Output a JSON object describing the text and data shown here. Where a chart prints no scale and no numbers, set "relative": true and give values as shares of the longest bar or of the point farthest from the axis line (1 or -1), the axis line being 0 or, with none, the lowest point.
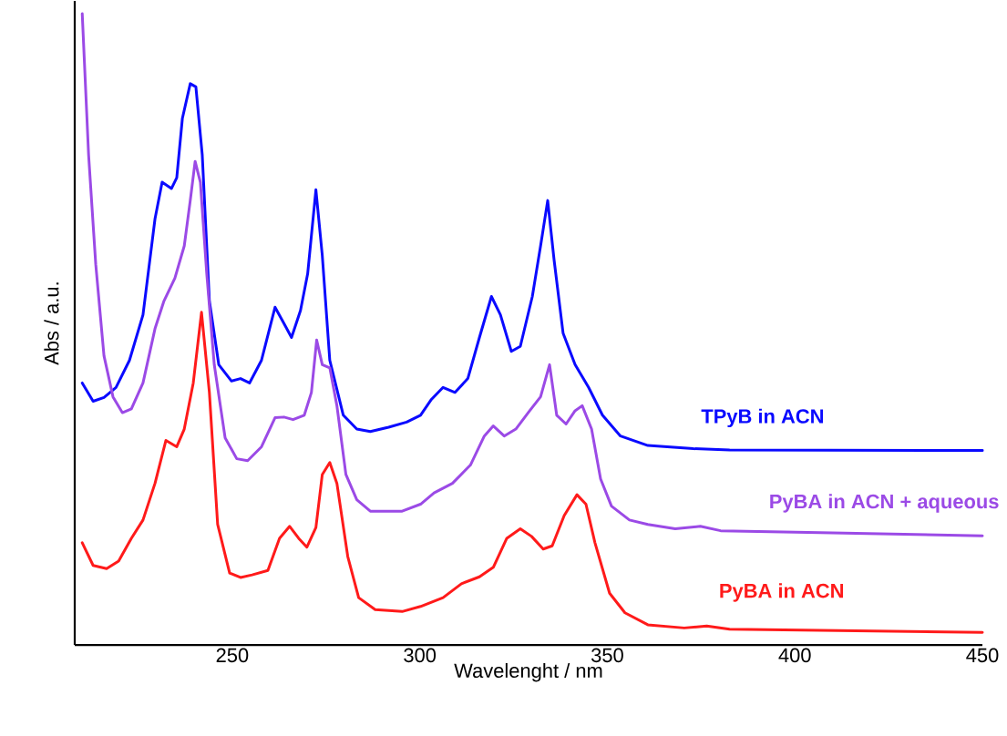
{
  "chart_data": {
    "type": "line",
    "relative": true,
    "xlabel": "Wavelenght / nm",
    "ylabel": "Abs / a.u.",
    "xlim": [
      208,
      450
    ],
    "xticks": [
      250,
      300,
      350,
      400,
      450
    ],
    "grid": false,
    "marker": "none",
    "line_style": "solid",
    "series": [
      {
        "name": "**TPyB in ACN**",
        "color": "#0a0aff",
        "x": [
          210,
          212.9,
          215.8,
          219,
          222.6,
          226.2,
          229.4,
          231.3,
          233.8,
          235.2,
          236.7,
          238.8,
          240.3,
          242,
          243.9,
          246.4,
          249.8,
          252.2,
          254.6,
          257.8,
          261.4,
          263.8,
          265.8,
          268.2,
          270.1,
          272.3,
          274,
          276,
          279.6,
          283.2,
          286.8,
          291.7,
          296.5,
          300.2,
          303.1,
          306.2,
          309.4,
          312.8,
          315.9,
          319.1,
          321.5,
          324.4,
          326.8,
          330,
          332.2,
          334.1,
          335.8,
          338.2,
          341.4,
          345,
          348.7,
          353.5,
          360.8,
          372.9,
          382.6,
          450
        ],
        "values": [
          0.415,
          0.386,
          0.392,
          0.408,
          0.451,
          0.523,
          0.675,
          0.733,
          0.723,
          0.74,
          0.834,
          0.889,
          0.884,
          0.776,
          0.545,
          0.444,
          0.418,
          0.422,
          0.415,
          0.451,
          0.535,
          0.509,
          0.487,
          0.53,
          0.588,
          0.721,
          0.617,
          0.451,
          0.364,
          0.342,
          0.338,
          0.345,
          0.353,
          0.364,
          0.389,
          0.408,
          0.4,
          0.422,
          0.487,
          0.552,
          0.523,
          0.465,
          0.473,
          0.552,
          0.632,
          0.704,
          0.61,
          0.494,
          0.444,
          0.408,
          0.364,
          0.331,
          0.316,
          0.311,
          0.309,
          0.308
        ]
      },
      {
        "name": "**PyBA  in  ACN  +  aqueous**",
        "color": "#9b4ae6",
        "x": [
          210,
          211.7,
          213.6,
          215.8,
          218.2,
          220.7,
          223.1,
          226.2,
          229.4,
          231.8,
          234.7,
          237.2,
          238.8,
          240.1,
          241.5,
          243.2,
          245.2,
          248.1,
          251.2,
          254.1,
          257.8,
          261.4,
          263.8,
          266.2,
          269.2,
          271.1,
          272.5,
          274,
          276,
          277.9,
          280.3,
          283.2,
          286.8,
          295.3,
          300.2,
          303.8,
          308.7,
          313.5,
          317.2,
          319.6,
          322.5,
          325.6,
          329.3,
          332.2,
          334.6,
          336.5,
          339,
          341.4,
          343.3,
          345.8,
          348.2,
          351.1,
          355.9,
          360.8,
          368.1,
          374.8,
          380.2,
          406.8,
          450
        ],
        "values": [
          1.0,
          0.776,
          0.603,
          0.458,
          0.393,
          0.368,
          0.374,
          0.415,
          0.501,
          0.545,
          0.581,
          0.632,
          0.704,
          0.766,
          0.733,
          0.588,
          0.444,
          0.328,
          0.295,
          0.292,
          0.314,
          0.36,
          0.361,
          0.357,
          0.364,
          0.4,
          0.483,
          0.444,
          0.439,
          0.379,
          0.27,
          0.23,
          0.212,
          0.212,
          0.223,
          0.241,
          0.256,
          0.285,
          0.331,
          0.347,
          0.331,
          0.342,
          0.371,
          0.393,
          0.444,
          0.364,
          0.35,
          0.371,
          0.379,
          0.342,
          0.263,
          0.22,
          0.198,
          0.191,
          0.184,
          0.188,
          0.181,
          0.178,
          0.173
        ]
      },
      {
        "name": "**PyBA in ACN**",
        "color": "#ff1a1a",
        "x": [
          210,
          212.9,
          216.5,
          219.7,
          223.1,
          226.2,
          229.4,
          232.3,
          235.2,
          237.2,
          239.6,
          241.8,
          243.9,
          246.1,
          249.3,
          252.2,
          255.3,
          259.5,
          262.6,
          265.3,
          267.7,
          269.9,
          272.3,
          274,
          276,
          277.9,
          280.8,
          283.7,
          288.1,
          295.3,
          300.2,
          306.2,
          311.1,
          315.9,
          319.6,
          323.2,
          326.8,
          329.8,
          332.9,
          335.3,
          338.5,
          341.9,
          344.3,
          346.7,
          350.6,
          354.7,
          360.8,
          370.5,
          376.5,
          382.6,
          450
        ],
        "values": [
          0.162,
          0.126,
          0.121,
          0.133,
          0.169,
          0.198,
          0.256,
          0.324,
          0.314,
          0.342,
          0.415,
          0.527,
          0.4,
          0.191,
          0.114,
          0.107,
          0.111,
          0.118,
          0.169,
          0.188,
          0.169,
          0.155,
          0.186,
          0.27,
          0.289,
          0.256,
          0.14,
          0.075,
          0.056,
          0.053,
          0.061,
          0.075,
          0.097,
          0.108,
          0.123,
          0.169,
          0.184,
          0.172,
          0.152,
          0.157,
          0.205,
          0.238,
          0.223,
          0.162,
          0.082,
          0.051,
          0.032,
          0.027,
          0.03,
          0.025,
          0.02
        ]
      }
    ]
  }
}
